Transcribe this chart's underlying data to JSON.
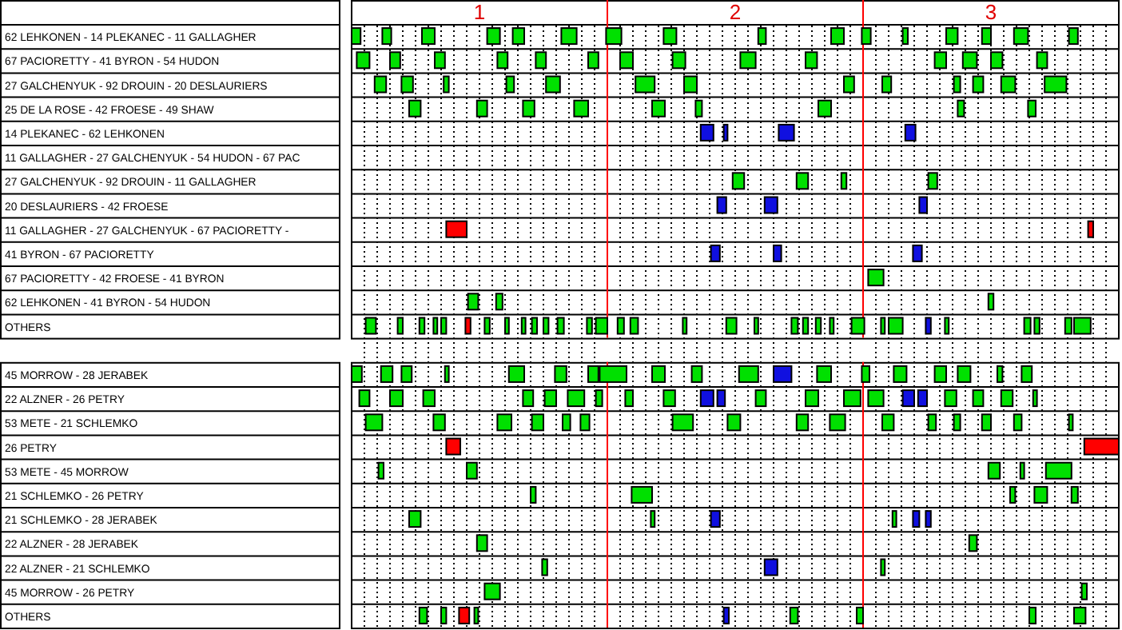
{
  "chart_data": {
    "type": "bar",
    "orientation": "horizontal",
    "grid": "x",
    "xlim": [
      0.5,
      3.5
    ],
    "xticks": [
      {
        "value": 0.55,
        "label": null
      },
      {
        "value": 0.6,
        "label": null
      },
      {
        "value": 0.65,
        "label": null
      },
      {
        "value": 0.7,
        "label": null
      },
      {
        "value": 0.75,
        "label": null
      },
      {
        "value": 0.8,
        "label": null
      },
      {
        "value": 0.85,
        "label": null
      },
      {
        "value": 0.9,
        "label": null
      },
      {
        "value": 0.95,
        "label": null
      },
      1,
      {
        "value": 1.05,
        "label": null
      },
      {
        "value": 1.1,
        "label": null
      },
      {
        "value": 1.15,
        "label": null
      },
      {
        "value": 1.2,
        "label": null
      },
      {
        "value": 1.25,
        "label": null
      },
      {
        "value": 1.3,
        "label": null
      },
      {
        "value": 1.35,
        "label": null
      },
      {
        "value": 1.4,
        "label": null
      },
      {
        "value": 1.45,
        "label": null
      },
      {
        "value": 1.55,
        "label": null
      },
      {
        "value": 1.6,
        "label": null
      },
      {
        "value": 1.65,
        "label": null
      },
      {
        "value": 1.7,
        "label": null
      },
      {
        "value": 1.75,
        "label": null
      },
      {
        "value": 1.8,
        "label": null
      },
      {
        "value": 1.85,
        "label": null
      },
      {
        "value": 1.9,
        "label": null
      },
      {
        "value": 1.95,
        "label": null
      },
      2,
      {
        "value": 2.05,
        "label": null
      },
      {
        "value": 2.1,
        "label": null
      },
      {
        "value": 2.15,
        "label": null
      },
      {
        "value": 2.2,
        "label": null
      },
      {
        "value": 2.25,
        "label": null
      },
      {
        "value": 2.3,
        "label": null
      },
      {
        "value": 2.35,
        "label": null
      },
      {
        "value": 2.4,
        "label": null
      },
      {
        "value": 2.45,
        "label": null
      },
      {
        "value": 2.55,
        "label": null
      },
      {
        "value": 2.6,
        "label": null
      },
      {
        "value": 2.65,
        "label": null
      },
      {
        "value": 2.7,
        "label": null
      },
      {
        "value": 2.75,
        "label": null
      },
      {
        "value": 2.8,
        "label": null
      },
      {
        "value": 2.85,
        "label": null
      },
      {
        "value": 2.9,
        "label": null
      },
      {
        "value": 2.95,
        "label": null
      },
      3,
      {
        "value": 3.05,
        "label": null
      },
      {
        "value": 3.1,
        "label": null
      },
      {
        "value": 3.15,
        "label": null
      },
      {
        "value": 3.2,
        "label": null
      },
      {
        "value": 3.25,
        "label": null
      },
      {
        "value": 3.3,
        "label": null
      },
      {
        "value": 3.35,
        "label": null
      },
      {
        "value": 3.4,
        "label": null
      },
      {
        "value": 3.45,
        "label": null
      }
    ],
    "ref_lines": [
      {
        "axis": "x",
        "value": 1.5,
        "color": "#ff0000"
      },
      {
        "axis": "x",
        "value": 2.5,
        "color": "#ff0000"
      }
    ],
    "categories": [
      "62 LEHKONEN - 14 PLEKANEC - 11 GALLAGHER",
      "67 PACIORETTY - 41 BYRON - 54 HUDON",
      "27 GALCHENYUK - 92 DROUIN - 20 DESLAURIERS",
      "25 DE LA ROSE - 42 FROESE - 49 SHAW",
      "14 PLEKANEC - 62 LEHKONEN",
      "11 GALLAGHER - 27 GALCHENYUK - 54 HUDON - 67 PAC",
      "27 GALCHENYUK - 92 DROUIN - 11 GALLAGHER",
      "20 DESLAURIERS - 42 FROESE",
      "11 GALLAGHER - 27 GALCHENYUK - 67 PACIORETTY -",
      "41 BYRON - 67 PACIORETTY",
      "67 PACIORETTY - 42 FROESE - 41 BYRON",
      "62 LEHKONEN - 41 BYRON - 54 HUDON",
      "OTHERS",
      null,
      "45 MORROW - 28 JERABEK",
      "22 ALZNER - 26 PETRY",
      "53 METE - 21 SCHLEMKO",
      "26 PETRY",
      "53 METE - 45 MORROW",
      "21 SCHLEMKO - 26 PETRY",
      "21 SCHLEMKO - 28 JERABEK",
      "22 ALZNER - 28 JERABEK",
      "22 ALZNER - 21 SCHLEMKO",
      "45 MORROW - 26 PETRY",
      "OTHERS"
    ],
    "series": [
      {
        "color": "#00e000",
        "colors": [
          null,
          null,
          null,
          null,
          "#1010e0",
          null,
          null,
          "#1010e0",
          "#ff0000",
          "#1010e0",
          null,
          null,
          null,
          null,
          null,
          null,
          null,
          "#ff0000",
          null,
          null,
          null,
          null,
          null,
          null,
          null
        ],
        "base": [
          0.5,
          0.52,
          0.59,
          0.725,
          1.865,
          null,
          1.99,
          1.93,
          0.87,
          1.905,
          2.52,
          0.955,
          0.555,
          null,
          0.5,
          0.53,
          0.555,
          0.87,
          0.605,
          1.2,
          0.725,
          0.99,
          1.245,
          1.02,
          0.765
        ],
        "values": [
          0.035,
          0.05,
          0.045,
          0.045,
          0.05,
          null,
          0.045,
          0.035,
          0.08,
          0.035,
          0.06,
          0.04,
          0.04,
          null,
          0.04,
          0.04,
          0.065,
          0.055,
          0.02,
          0.02,
          0.045,
          0.04,
          0.02,
          0.06,
          0.03
        ]
      },
      {
        "color": "#00e000",
        "colors": [
          null,
          null,
          null,
          null,
          "#1010e0",
          null,
          null,
          "#1010e0",
          "#ff0000",
          "#1010e0",
          null,
          null,
          null,
          null,
          null,
          null,
          null,
          "#ff0000",
          null,
          null,
          null,
          null,
          "#1010e0",
          null,
          null
        ],
        "base": [
          0.62,
          0.65,
          0.695,
          0.99,
          1.955,
          null,
          2.24,
          2.115,
          3.38,
          2.15,
          null,
          1.065,
          0.68,
          null,
          0.615,
          0.65,
          0.82,
          3.365,
          0.95,
          1.595,
          1.67,
          2.915,
          2.115,
          3.355,
          0.85
        ],
        "values": [
          0.035,
          0.04,
          0.045,
          0.04,
          0.015,
          null,
          0.045,
          0.05,
          0.02,
          0.03,
          null,
          0.025,
          0.02,
          null,
          0.045,
          0.05,
          0.045,
          0.135,
          0.04,
          0.08,
          0.015,
          0.03,
          0.05,
          0.02,
          0.02
        ]
      },
      {
        "color": "#00e000",
        "colors": [
          null,
          null,
          null,
          null,
          "#1010e0",
          null,
          null,
          "#1010e0",
          null,
          "#1010e0",
          null,
          null,
          null,
          null,
          null,
          null,
          null,
          null,
          null,
          null,
          "#1010e0",
          null,
          null,
          null,
          "#ff0000"
        ],
        "base": [
          0.775,
          0.825,
          0.86,
          1.17,
          2.17,
          null,
          2.415,
          2.72,
          null,
          2.695,
          null,
          2.99,
          0.765,
          null,
          0.695,
          0.78,
          1.07,
          null,
          2.99,
          3.075,
          1.905,
          null,
          2.57,
          null,
          0.92
        ],
        "values": [
          0.05,
          0.04,
          0.02,
          0.045,
          0.06,
          null,
          0.02,
          0.03,
          null,
          0.035,
          null,
          0.02,
          0.02,
          null,
          0.04,
          0.045,
          0.055,
          null,
          0.045,
          0.02,
          0.035,
          null,
          0.015,
          null,
          0.04
        ]
      },
      {
        "color": "#00e000",
        "colors": [
          null,
          null,
          null,
          null,
          "#1010e0",
          null,
          null,
          null,
          null,
          null,
          null,
          null,
          null,
          null,
          null,
          null,
          null,
          null,
          null,
          null,
          null,
          null,
          null,
          null,
          null
        ],
        "base": [
          1.03,
          1.07,
          1.105,
          1.37,
          2.665,
          null,
          2.755,
          null,
          null,
          null,
          null,
          null,
          0.82,
          null,
          0.865,
          1.17,
          1.205,
          null,
          3.115,
          3.17,
          2.615,
          null,
          null,
          null,
          0.98
        ],
        "values": [
          0.05,
          0.04,
          0.03,
          0.055,
          0.04,
          null,
          0.035,
          null,
          null,
          null,
          null,
          null,
          0.015,
          null,
          0.015,
          0.04,
          0.045,
          null,
          0.015,
          0.05,
          0.015,
          null,
          null,
          null,
          0.015
        ]
      },
      {
        "color": "#00e000",
        "colors": [
          null,
          null,
          null,
          null,
          null,
          null,
          null,
          null,
          null,
          null,
          null,
          null,
          null,
          null,
          null,
          null,
          null,
          null,
          null,
          null,
          "#1010e0",
          null,
          null,
          null,
          "#1010e0"
        ],
        "base": [
          1.13,
          1.22,
          1.26,
          1.675,
          null,
          null,
          null,
          null,
          null,
          null,
          null,
          null,
          0.85,
          null,
          1.115,
          1.255,
          1.325,
          null,
          3.215,
          3.315,
          2.695,
          null,
          null,
          null,
          1.955
        ],
        "values": [
          0.045,
          0.04,
          0.055,
          0.05,
          null,
          null,
          null,
          null,
          null,
          null,
          null,
          null,
          0.02,
          null,
          0.06,
          0.045,
          0.03,
          null,
          0.1,
          0.025,
          0.025,
          null,
          null,
          null,
          0.02
        ]
      },
      {
        "color": "#00e000",
        "colors": [
          null,
          null,
          null,
          null,
          null,
          null,
          null,
          null,
          null,
          null,
          null,
          null,
          "#ff0000",
          null,
          null,
          null,
          null,
          null,
          null,
          null,
          "#1010e0",
          null,
          null,
          null,
          null
        ],
        "base": [
          1.32,
          1.425,
          1.61,
          1.845,
          null,
          null,
          null,
          null,
          null,
          null,
          null,
          null,
          0.945,
          null,
          1.295,
          1.345,
          1.395,
          null,
          null,
          null,
          2.745,
          null,
          null,
          null,
          2.215
        ],
        "values": [
          0.06,
          0.04,
          0.075,
          0.025,
          null,
          null,
          null,
          null,
          null,
          null,
          null,
          null,
          0.02,
          null,
          0.045,
          0.065,
          0.035,
          null,
          null,
          null,
          0.02,
          null,
          null,
          null,
          0.03
        ]
      },
      {
        "color": "#00e000",
        "base": [
          1.495,
          1.55,
          1.8,
          2.325,
          null,
          null,
          null,
          null,
          null,
          null,
          null,
          null,
          1.02,
          null,
          1.425,
          1.455,
          1.755,
          null,
          null,
          null,
          null,
          null,
          null,
          null,
          2.475
        ],
        "values": [
          0.06,
          0.05,
          0.05,
          0.05,
          null,
          null,
          null,
          null,
          null,
          null,
          null,
          null,
          0.02,
          null,
          0.04,
          0.025,
          0.08,
          null,
          null,
          null,
          null,
          null,
          null,
          null,
          0.025
        ]
      },
      {
        "color": "#00e000",
        "base": [
          1.72,
          1.755,
          2.425,
          2.87,
          null,
          null,
          null,
          null,
          null,
          null,
          null,
          null,
          1.1,
          null,
          1.47,
          1.57,
          1.97,
          null,
          null,
          null,
          null,
          null,
          null,
          null,
          3.15
        ],
        "values": [
          0.05,
          0.05,
          0.04,
          0.025,
          null,
          null,
          null,
          null,
          null,
          null,
          null,
          null,
          0.015,
          null,
          0.105,
          0.03,
          0.05,
          null,
          null,
          null,
          null,
          null,
          null,
          null,
          0.025
        ]
      },
      {
        "color": "#00e000",
        "base": [
          2.09,
          2.02,
          2.575,
          3.145,
          null,
          null,
          null,
          null,
          null,
          null,
          null,
          null,
          1.165,
          null,
          1.675,
          1.72,
          2.24,
          null,
          null,
          null,
          null,
          null,
          null,
          null,
          3.325
        ],
        "values": [
          0.03,
          0.06,
          0.035,
          0.03,
          null,
          null,
          null,
          null,
          null,
          null,
          null,
          null,
          0.015,
          null,
          0.05,
          0.045,
          0.045,
          null,
          null,
          null,
          null,
          null,
          null,
          null,
          0.045
        ]
      },
      {
        "color": "#00e000",
        "colors": [
          null,
          null,
          null,
          null,
          null,
          null,
          null,
          null,
          null,
          null,
          null,
          null,
          null,
          null,
          null,
          "#1010e0",
          null,
          null,
          null,
          null,
          null,
          null,
          null,
          null,
          null
        ],
        "base": [
          2.375,
          2.275,
          2.855,
          null,
          null,
          null,
          null,
          null,
          null,
          null,
          null,
          null,
          1.205,
          null,
          1.83,
          1.865,
          2.37,
          null,
          null,
          null,
          null,
          null,
          null,
          null,
          null
        ],
        "values": [
          0.05,
          0.045,
          0.025,
          null,
          null,
          null,
          null,
          null,
          null,
          null,
          null,
          null,
          0.02,
          null,
          0.04,
          0.05,
          0.06,
          null,
          null,
          null,
          null,
          null,
          null,
          null,
          null
        ]
      },
      {
        "color": "#00e000",
        "colors": [
          null,
          null,
          null,
          null,
          null,
          null,
          null,
          null,
          null,
          null,
          null,
          null,
          null,
          null,
          null,
          "#1010e0",
          null,
          null,
          null,
          null,
          null,
          null,
          null,
          null,
          null
        ],
        "base": [
          2.495,
          2.78,
          2.93,
          null,
          null,
          null,
          null,
          null,
          null,
          null,
          null,
          null,
          1.25,
          null,
          2.015,
          1.93,
          2.575,
          null,
          null,
          null,
          null,
          null,
          null,
          null,
          null
        ],
        "values": [
          0.035,
          0.045,
          0.04,
          null,
          null,
          null,
          null,
          null,
          null,
          null,
          null,
          null,
          0.02,
          null,
          0.075,
          0.03,
          0.045,
          null,
          null,
          null,
          null,
          null,
          null,
          null,
          null
        ]
      },
      {
        "color": "#00e000",
        "colors": [
          null,
          null,
          null,
          null,
          null,
          null,
          null,
          null,
          null,
          null,
          null,
          null,
          null,
          null,
          "#1010e0",
          null,
          null,
          null,
          null,
          null,
          null,
          null,
          null,
          null,
          null
        ],
        "base": [
          2.655,
          2.89,
          3.04,
          null,
          null,
          null,
          null,
          null,
          null,
          null,
          null,
          null,
          1.305,
          null,
          2.15,
          2.08,
          2.755,
          null,
          null,
          null,
          null,
          null,
          null,
          null,
          null
        ],
        "values": [
          0.02,
          0.055,
          0.055,
          null,
          null,
          null,
          null,
          null,
          null,
          null,
          null,
          null,
          0.025,
          null,
          0.07,
          0.04,
          0.03,
          null,
          null,
          null,
          null,
          null,
          null,
          null,
          null
        ]
      },
      {
        "color": "#00e000",
        "base": [
          2.825,
          3.0,
          3.21,
          null,
          null,
          null,
          null,
          null,
          null,
          null,
          null,
          null,
          1.42,
          null,
          2.32,
          2.275,
          2.855,
          null,
          null,
          null,
          null,
          null,
          null,
          null,
          null
        ],
        "values": [
          0.045,
          0.045,
          0.085,
          null,
          null,
          null,
          null,
          null,
          null,
          null,
          null,
          null,
          0.02,
          null,
          0.055,
          0.05,
          0.025,
          null,
          null,
          null,
          null,
          null,
          null,
          null,
          null
        ]
      },
      {
        "color": "#00e000",
        "base": [
          2.965,
          3.18,
          null,
          null,
          null,
          null,
          null,
          null,
          null,
          null,
          null,
          null,
          1.455,
          null,
          2.495,
          2.425,
          2.965,
          null,
          null,
          null,
          null,
          null,
          null,
          null,
          null
        ],
        "values": [
          0.035,
          0.04,
          null,
          null,
          null,
          null,
          null,
          null,
          null,
          null,
          null,
          null,
          0.045,
          null,
          0.03,
          0.065,
          0.035,
          null,
          null,
          null,
          null,
          null,
          null,
          null,
          null
        ]
      },
      {
        "color": "#00e000",
        "base": [
          3.09,
          null,
          null,
          null,
          null,
          null,
          null,
          null,
          null,
          null,
          null,
          null,
          1.54,
          null,
          2.62,
          2.52,
          3.09,
          null,
          null,
          null,
          null,
          null,
          null,
          null,
          null
        ],
        "values": [
          0.055,
          null,
          null,
          null,
          null,
          null,
          null,
          null,
          null,
          null,
          null,
          null,
          0.025,
          null,
          0.05,
          0.06,
          0.03,
          null,
          null,
          null,
          null,
          null,
          null,
          null,
          null
        ]
      },
      {
        "color": "#00e000",
        "colors": [
          null,
          null,
          null,
          null,
          null,
          null,
          null,
          null,
          null,
          null,
          null,
          null,
          null,
          null,
          null,
          "#1010e0",
          null,
          null,
          null,
          null,
          null,
          null,
          null,
          null,
          null
        ],
        "base": [
          3.305,
          null,
          null,
          null,
          null,
          null,
          null,
          null,
          null,
          null,
          null,
          null,
          1.59,
          null,
          2.78,
          2.655,
          3.305,
          null,
          null,
          null,
          null,
          null,
          null,
          null,
          null
        ],
        "values": [
          0.035,
          null,
          null,
          null,
          null,
          null,
          null,
          null,
          null,
          null,
          null,
          null,
          0.03,
          null,
          0.045,
          0.045,
          0.015,
          null,
          null,
          null,
          null,
          null,
          null,
          null,
          null
        ]
      },
      {
        "color": "#00e000",
        "colors": [
          null,
          null,
          null,
          null,
          null,
          null,
          null,
          null,
          null,
          null,
          null,
          null,
          null,
          null,
          null,
          "#1010e0",
          null,
          null,
          null,
          null,
          null,
          null,
          null,
          null,
          null
        ],
        "base": [
          null,
          null,
          null,
          null,
          null,
          null,
          null,
          null,
          null,
          null,
          null,
          null,
          1.795,
          null,
          2.87,
          2.715,
          null,
          null,
          null,
          null,
          null,
          null,
          null,
          null,
          null
        ],
        "values": [
          null,
          null,
          null,
          null,
          null,
          null,
          null,
          null,
          null,
          null,
          null,
          null,
          0.015,
          null,
          0.05,
          0.035,
          null,
          null,
          null,
          null,
          null,
          null,
          null,
          null,
          null
        ]
      },
      {
        "color": "#00e000",
        "base": [
          null,
          null,
          null,
          null,
          null,
          null,
          null,
          null,
          null,
          null,
          null,
          null,
          1.965,
          null,
          3.025,
          2.82,
          null,
          null,
          null,
          null,
          null,
          null,
          null,
          null,
          null
        ],
        "values": [
          null,
          null,
          null,
          null,
          null,
          null,
          null,
          null,
          null,
          null,
          null,
          null,
          0.04,
          null,
          0.02,
          0.045,
          null,
          null,
          null,
          null,
          null,
          null,
          null,
          null,
          null
        ]
      },
      {
        "color": "#00e000",
        "base": [
          null,
          null,
          null,
          null,
          null,
          null,
          null,
          null,
          null,
          null,
          null,
          null,
          2.075,
          null,
          3.12,
          2.93,
          null,
          null,
          null,
          null,
          null,
          null,
          null,
          null,
          null
        ],
        "values": [
          null,
          null,
          null,
          null,
          null,
          null,
          null,
          null,
          null,
          null,
          null,
          null,
          0.015,
          null,
          0.04,
          0.04,
          null,
          null,
          null,
          null,
          null,
          null,
          null,
          null,
          null
        ]
      },
      {
        "color": "#00e000",
        "base": [
          null,
          null,
          null,
          null,
          null,
          null,
          null,
          null,
          null,
          null,
          null,
          null,
          2.22,
          null,
          null,
          3.04,
          null,
          null,
          null,
          null,
          null,
          null,
          null,
          null,
          null
        ],
        "values": [
          null,
          null,
          null,
          null,
          null,
          null,
          null,
          null,
          null,
          null,
          null,
          null,
          0.025,
          null,
          null,
          0.045,
          null,
          null,
          null,
          null,
          null,
          null,
          null,
          null,
          null
        ]
      },
      {
        "color": "#00e000",
        "base": [
          null,
          null,
          null,
          null,
          null,
          null,
          null,
          null,
          null,
          null,
          null,
          null,
          2.265,
          null,
          null,
          3.165,
          null,
          null,
          null,
          null,
          null,
          null,
          null,
          null,
          null
        ],
        "values": [
          null,
          null,
          null,
          null,
          null,
          null,
          null,
          null,
          null,
          null,
          null,
          null,
          0.02,
          null,
          null,
          0.015,
          null,
          null,
          null,
          null,
          null,
          null,
          null,
          null,
          null
        ]
      },
      {
        "color": "#00e000",
        "base": [
          null,
          null,
          null,
          null,
          null,
          null,
          null,
          null,
          null,
          null,
          null,
          null,
          2.315,
          null,
          null,
          null,
          null,
          null,
          null,
          null,
          null,
          null,
          null,
          null,
          null
        ],
        "values": [
          null,
          null,
          null,
          null,
          null,
          null,
          null,
          null,
          null,
          null,
          null,
          null,
          0.02,
          null,
          null,
          null,
          null,
          null,
          null,
          null,
          null,
          null,
          null,
          null,
          null
        ]
      },
      {
        "color": "#00e000",
        "base": [
          null,
          null,
          null,
          null,
          null,
          null,
          null,
          null,
          null,
          null,
          null,
          null,
          2.37,
          null,
          null,
          null,
          null,
          null,
          null,
          null,
          null,
          null,
          null,
          null,
          null
        ],
        "values": [
          null,
          null,
          null,
          null,
          null,
          null,
          null,
          null,
          null,
          null,
          null,
          null,
          0.015,
          null,
          null,
          null,
          null,
          null,
          null,
          null,
          null,
          null,
          null,
          null,
          null
        ]
      },
      {
        "color": "#00e000",
        "base": [
          null,
          null,
          null,
          null,
          null,
          null,
          null,
          null,
          null,
          null,
          null,
          null,
          2.455,
          null,
          null,
          null,
          null,
          null,
          null,
          null,
          null,
          null,
          null,
          null,
          null
        ],
        "values": [
          null,
          null,
          null,
          null,
          null,
          null,
          null,
          null,
          null,
          null,
          null,
          null,
          0.05,
          null,
          null,
          null,
          null,
          null,
          null,
          null,
          null,
          null,
          null,
          null,
          null
        ]
      },
      {
        "color": "#00e000",
        "base": [
          null,
          null,
          null,
          null,
          null,
          null,
          null,
          null,
          null,
          null,
          null,
          null,
          2.57,
          null,
          null,
          null,
          null,
          null,
          null,
          null,
          null,
          null,
          null,
          null,
          null
        ],
        "values": [
          null,
          null,
          null,
          null,
          null,
          null,
          null,
          null,
          null,
          null,
          null,
          null,
          0.015,
          null,
          null,
          null,
          null,
          null,
          null,
          null,
          null,
          null,
          null,
          null,
          null
        ]
      },
      {
        "color": "#00e000",
        "base": [
          null,
          null,
          null,
          null,
          null,
          null,
          null,
          null,
          null,
          null,
          null,
          null,
          2.6,
          null,
          null,
          null,
          null,
          null,
          null,
          null,
          null,
          null,
          null,
          null,
          null
        ],
        "values": [
          null,
          null,
          null,
          null,
          null,
          null,
          null,
          null,
          null,
          null,
          null,
          null,
          0.055,
          null,
          null,
          null,
          null,
          null,
          null,
          null,
          null,
          null,
          null,
          null,
          null
        ]
      },
      {
        "color": "#1010e0",
        "base": [
          null,
          null,
          null,
          null,
          null,
          null,
          null,
          null,
          null,
          null,
          null,
          null,
          2.745,
          null,
          null,
          null,
          null,
          null,
          null,
          null,
          null,
          null,
          null,
          null,
          null
        ],
        "values": [
          null,
          null,
          null,
          null,
          null,
          null,
          null,
          null,
          null,
          null,
          null,
          null,
          0.02,
          null,
          null,
          null,
          null,
          null,
          null,
          null,
          null,
          null,
          null,
          null,
          null
        ]
      },
      {
        "color": "#00e000",
        "base": [
          null,
          null,
          null,
          null,
          null,
          null,
          null,
          null,
          null,
          null,
          null,
          null,
          2.82,
          null,
          null,
          null,
          null,
          null,
          null,
          null,
          null,
          null,
          null,
          null,
          null
        ],
        "values": [
          null,
          null,
          null,
          null,
          null,
          null,
          null,
          null,
          null,
          null,
          null,
          null,
          0.015,
          null,
          null,
          null,
          null,
          null,
          null,
          null,
          null,
          null,
          null,
          null,
          null
        ]
      },
      {
        "color": "#00e000",
        "base": [
          null,
          null,
          null,
          null,
          null,
          null,
          null,
          null,
          null,
          null,
          null,
          null,
          3.13,
          null,
          null,
          null,
          null,
          null,
          null,
          null,
          null,
          null,
          null,
          null,
          null
        ],
        "values": [
          null,
          null,
          null,
          null,
          null,
          null,
          null,
          null,
          null,
          null,
          null,
          null,
          0.025,
          null,
          null,
          null,
          null,
          null,
          null,
          null,
          null,
          null,
          null,
          null,
          null
        ]
      },
      {
        "color": "#00e000",
        "base": [
          null,
          null,
          null,
          null,
          null,
          null,
          null,
          null,
          null,
          null,
          null,
          null,
          3.17,
          null,
          null,
          null,
          null,
          null,
          null,
          null,
          null,
          null,
          null,
          null,
          null
        ],
        "values": [
          null,
          null,
          null,
          null,
          null,
          null,
          null,
          null,
          null,
          null,
          null,
          null,
          0.02,
          null,
          null,
          null,
          null,
          null,
          null,
          null,
          null,
          null,
          null,
          null,
          null
        ]
      },
      {
        "color": "#00e000",
        "base": [
          null,
          null,
          null,
          null,
          null,
          null,
          null,
          null,
          null,
          null,
          null,
          null,
          3.29,
          null,
          null,
          null,
          null,
          null,
          null,
          null,
          null,
          null,
          null,
          null,
          null
        ],
        "values": [
          null,
          null,
          null,
          null,
          null,
          null,
          null,
          null,
          null,
          null,
          null,
          null,
          0.025,
          null,
          null,
          null,
          null,
          null,
          null,
          null,
          null,
          null,
          null,
          null,
          null
        ]
      },
      {
        "color": "#00e000",
        "base": [
          null,
          null,
          null,
          null,
          null,
          null,
          null,
          null,
          null,
          null,
          null,
          null,
          3.325,
          null,
          null,
          null,
          null,
          null,
          null,
          null,
          null,
          null,
          null,
          null,
          null
        ],
        "values": [
          null,
          null,
          null,
          null,
          null,
          null,
          null,
          null,
          null,
          null,
          null,
          null,
          0.065,
          null,
          null,
          null,
          null,
          null,
          null,
          null,
          null,
          null,
          null,
          null,
          null
        ]
      }
    ]
  }
}
